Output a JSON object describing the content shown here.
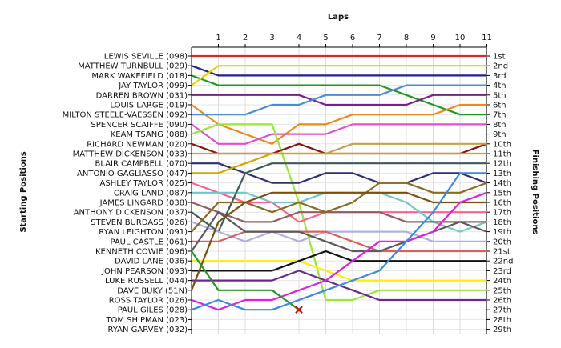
{
  "chart_data": {
    "type": "line",
    "title": "",
    "top_axis_label": "Laps",
    "left_axis_label": "Starting Positions",
    "right_axis_label": "Finishing Positions",
    "laps": [
      1,
      2,
      3,
      4,
      5,
      6,
      7,
      8,
      9,
      10,
      11
    ],
    "positions": [
      "1st",
      "2nd",
      "3rd",
      "4th",
      "5th",
      "6th",
      "7th",
      "8th",
      "9th",
      "10th",
      "11th",
      "12th",
      "13th",
      "14th",
      "15th",
      "16th",
      "17th",
      "18th",
      "19th",
      "20th",
      "21st",
      "22nd",
      "23rd",
      "24th",
      "25th",
      "26th",
      "27th",
      "28th",
      "29th"
    ],
    "grid": true,
    "series": [
      {
        "name": "LEWIS SEVILLE (098)",
        "color": "#d42a2a",
        "values": [
          1,
          1,
          1,
          1,
          1,
          1,
          1,
          1,
          1,
          1,
          1,
          1
        ]
      },
      {
        "name": "MATTHEW TURNBULL (029)",
        "color": "#22228c",
        "values": [
          2,
          3,
          3,
          3,
          3,
          3,
          3,
          3,
          3,
          3,
          3,
          3
        ]
      },
      {
        "name": "MARK WAKEFIELD (018)",
        "color": "#1e9a1e",
        "values": [
          3,
          4,
          4,
          4,
          4,
          4,
          4,
          4,
          5,
          6,
          7,
          7
        ]
      },
      {
        "name": "JAY TAYLOR (099)",
        "color": "#e4d400",
        "values": [
          4,
          2,
          2,
          2,
          2,
          2,
          2,
          2,
          2,
          2,
          2,
          2
        ]
      },
      {
        "name": "DARREN BROWN (031)",
        "color": "#7a1f8a",
        "values": [
          5,
          5,
          5,
          5,
          5,
          6,
          6,
          6,
          6,
          5,
          5,
          5
        ]
      },
      {
        "name": "LOUIS LARGE (019)",
        "color": "#ee8a1c",
        "values": [
          6,
          8,
          9,
          10,
          8,
          8,
          7,
          7,
          7,
          7,
          6,
          6
        ]
      },
      {
        "name": "MILTON STEELE-VAESSEN (092)",
        "color": "#4a8fd6",
        "values": [
          7,
          7,
          7,
          6,
          6,
          5,
          5,
          5,
          4,
          4,
          4,
          4
        ]
      },
      {
        "name": "SPENCER SCAIFFE (090)",
        "color": "#e24fd0",
        "values": [
          8,
          10,
          10,
          9,
          9,
          9,
          8,
          8,
          8,
          8,
          8,
          8
        ]
      },
      {
        "name": "KEAM TSANG (088)",
        "color": "#9ae63a",
        "values": [
          9,
          8,
          8,
          8,
          16,
          26,
          26,
          25,
          25,
          25,
          25,
          25
        ]
      },
      {
        "name": "RICHARD NEWMAN (020)",
        "color": "#8a1010",
        "values": [
          10,
          11,
          11,
          11,
          10,
          11,
          11,
          11,
          11,
          11,
          11,
          10
        ]
      },
      {
        "name": "MATTHEW DICKENSON (033)",
        "color": "#c8a050",
        "values": [
          11,
          11,
          11,
          11,
          11,
          11,
          10,
          10,
          10,
          10,
          10,
          10
        ]
      },
      {
        "name": "BLAIR CAMPBELL (070)",
        "color": "#2e2e70",
        "values": [
          12,
          12,
          13,
          14,
          14,
          13,
          13,
          14,
          14,
          13,
          13,
          14
        ]
      },
      {
        "name": "ANTONIO GAGLIASSO (047)",
        "color": "#ccaa00",
        "values": [
          13,
          13,
          12,
          11,
          11,
          11,
          11,
          11,
          11,
          11,
          11,
          11
        ]
      },
      {
        "name": "ASHLEY TAYLOR (025)",
        "color": "#ff6090",
        "values": [
          14,
          15,
          16,
          16,
          18,
          17,
          17,
          17,
          17,
          17,
          17,
          17
        ]
      },
      {
        "name": "CRAIG LAND (087)",
        "color": "#70c8c8",
        "values": [
          15,
          15,
          15,
          16,
          16,
          15,
          15,
          15,
          16,
          18,
          19,
          18
        ]
      },
      {
        "name": "JAMES LINGARD (038)",
        "color": "#906060",
        "values": [
          16,
          17,
          18,
          18,
          17,
          17,
          17,
          17,
          18,
          18,
          18,
          18
        ]
      },
      {
        "name": "ANTHONY DICKENSON (037)",
        "color": "#3c5a5a",
        "values": [
          17,
          19,
          13,
          12,
          12,
          12,
          12,
          12,
          12,
          12,
          12,
          12
        ]
      },
      {
        "name": "STEVEN BURDASS (026)",
        "color": "#b0b0e0",
        "values": [
          18,
          19,
          20,
          19,
          20,
          19,
          19,
          19,
          19,
          20,
          20,
          20
        ]
      },
      {
        "name": "RYAN LEIGHTON (091)",
        "color": "#8c6a22",
        "values": [
          19,
          16,
          16,
          17,
          16,
          17,
          16,
          14,
          14,
          15,
          15,
          14
        ]
      },
      {
        "name": "PAUL CASTLE (061)",
        "color": "#d86060",
        "values": [
          20,
          20,
          19,
          19,
          19,
          19,
          20,
          21,
          21,
          21,
          21,
          21
        ]
      },
      {
        "name": "KENNETH COWIE (096)",
        "color": "#5a5a5a",
        "values": [
          21,
          17,
          19,
          19,
          19,
          20,
          21,
          21,
          20,
          19,
          18,
          19
        ]
      },
      {
        "name": "DAVID LANE (036)",
        "color": "#ffee00",
        "values": [
          22,
          22,
          22,
          22,
          22,
          23,
          24,
          24,
          24,
          24,
          24,
          24
        ]
      },
      {
        "name": "JOHN PEARSON (093)",
        "color": "#111111",
        "values": [
          23,
          23,
          23,
          23,
          22,
          21,
          22,
          22,
          22,
          22,
          22,
          22
        ]
      },
      {
        "name": "LUKE RUSSELL (044)",
        "color": "#6a2a8a",
        "values": [
          24,
          24,
          24,
          24,
          23,
          24,
          25,
          26,
          26,
          26,
          26,
          26
        ]
      },
      {
        "name": "DAVE BUKY (51N)",
        "color": "#7a5010",
        "values": [
          25,
          18,
          16,
          15,
          15,
          15,
          15,
          15,
          15,
          16,
          16,
          16
        ]
      },
      {
        "name": "ROSS TAYLOR (026)",
        "color": "#e020e0",
        "values": [
          26,
          27,
          26,
          26,
          25,
          24,
          22,
          20,
          20,
          19,
          16,
          15
        ]
      },
      {
        "name": "PAUL GILES (028)",
        "color": "#229922",
        "values": [
          21,
          25,
          25,
          25,
          27
        ]
      },
      {
        "name": "TOM SHIPMAN (023)",
        "color": "#3a8ae0",
        "values": [
          27,
          26,
          27,
          27,
          26,
          25,
          24,
          23,
          20,
          17,
          13,
          13
        ]
      },
      {
        "name": "RYAN GARVEY (032)",
        "color": "#888888",
        "values": []
      }
    ],
    "retired": [
      {
        "name": "PAUL GILES (028)",
        "lap": 4
      }
    ]
  }
}
